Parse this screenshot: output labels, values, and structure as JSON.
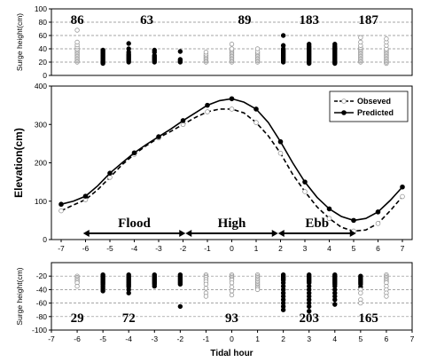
{
  "chart_data": [
    {
      "type": "scatter",
      "panel": "top",
      "ylabel": "Surge height(cm)",
      "ylim": [
        0,
        100
      ],
      "yticks": [
        0,
        20,
        40,
        60,
        80,
        100
      ],
      "xlim": [
        -7,
        7
      ],
      "grid": "horizontal dashed",
      "counts": [
        {
          "x": -6,
          "label": "86"
        },
        {
          "x": -3.3,
          "label": "63"
        },
        {
          "x": 0.5,
          "label": "89"
        },
        {
          "x": 3,
          "label": "183"
        },
        {
          "x": 5.3,
          "label": "187"
        }
      ],
      "points": [
        {
          "x": -6,
          "filled": false,
          "y": [
            20,
            22,
            24,
            26,
            28,
            30,
            32,
            34,
            36,
            38,
            40,
            43,
            46,
            50,
            68
          ]
        },
        {
          "x": -5,
          "filled": true,
          "y": [
            18,
            20,
            22,
            24,
            26,
            28,
            30,
            32,
            34,
            36,
            38
          ]
        },
        {
          "x": -4,
          "filled": true,
          "y": [
            20,
            22,
            24,
            26,
            28,
            30,
            32,
            35,
            40,
            48
          ]
        },
        {
          "x": -3,
          "filled": true,
          "y": [
            20,
            22,
            24,
            26,
            28,
            30,
            35,
            38
          ]
        },
        {
          "x": -2,
          "filled": true,
          "y": [
            20,
            22,
            24,
            36
          ]
        },
        {
          "x": -1,
          "filled": false,
          "y": [
            20,
            22,
            24,
            26,
            28,
            30,
            32,
            35
          ]
        },
        {
          "x": 0,
          "filled": false,
          "y": [
            20,
            22,
            24,
            26,
            28,
            30,
            32,
            34,
            36,
            38,
            40,
            47
          ]
        },
        {
          "x": 1,
          "filled": false,
          "y": [
            20,
            22,
            24,
            26,
            28,
            30,
            32,
            34,
            36,
            40
          ]
        },
        {
          "x": 2,
          "filled": true,
          "y": [
            20,
            22,
            24,
            26,
            28,
            30,
            32,
            34,
            36,
            38,
            40,
            45,
            60
          ]
        },
        {
          "x": 3,
          "filled": true,
          "y": [
            18,
            20,
            22,
            24,
            26,
            28,
            30,
            32,
            34,
            36,
            38,
            40,
            42,
            44,
            47
          ]
        },
        {
          "x": 4,
          "filled": true,
          "y": [
            18,
            20,
            22,
            24,
            26,
            28,
            30,
            32,
            34,
            36,
            38,
            40,
            42,
            44,
            47
          ]
        },
        {
          "x": 5,
          "filled": false,
          "y": [
            20,
            22,
            24,
            26,
            28,
            30,
            32,
            34,
            36,
            38,
            40,
            42,
            45,
            50,
            57
          ]
        },
        {
          "x": 6,
          "filled": false,
          "y": [
            18,
            20,
            22,
            24,
            26,
            28,
            30,
            32,
            34,
            36,
            38,
            40,
            45,
            50,
            55
          ]
        }
      ]
    },
    {
      "type": "line",
      "panel": "middle",
      "ylabel": "Elevation(cm)",
      "ylim": [
        0,
        400
      ],
      "yticks": [
        0,
        100,
        200,
        300,
        400
      ],
      "xlim": [
        -7.4,
        7.4
      ],
      "xticks": [
        -7,
        -6,
        -5,
        -4,
        -3,
        -2,
        -1,
        0,
        1,
        2,
        3,
        4,
        5,
        6,
        7
      ],
      "legend": "top-right",
      "series": [
        {
          "name": "Obseved",
          "style": "dashed",
          "marker": "open-circle",
          "x": [
            -7,
            -6.5,
            -6,
            -5.5,
            -5,
            -4.5,
            -4,
            -3.5,
            -3,
            -2.5,
            -2,
            -1.5,
            -1,
            -0.5,
            0,
            0.5,
            1,
            1.5,
            2,
            2.5,
            3,
            3.5,
            4,
            4.5,
            5,
            5.5,
            6,
            6.5,
            7
          ],
          "values": [
            75,
            90,
            104,
            130,
            162,
            195,
            222,
            245,
            265,
            282,
            300,
            318,
            333,
            340,
            340,
            330,
            305,
            270,
            225,
            170,
            125,
            85,
            55,
            32,
            22,
            25,
            42,
            75,
            112
          ]
        },
        {
          "name": "Predicted",
          "style": "solid",
          "marker": "filled-circle",
          "x": [
            -7,
            -6.5,
            -6,
            -5.5,
            -5,
            -4.5,
            -4,
            -3.5,
            -3,
            -2.5,
            -2,
            -1.5,
            -1,
            -0.5,
            0,
            0.5,
            1,
            1.5,
            2,
            2.5,
            3,
            3.5,
            4,
            4.5,
            5,
            5.5,
            6,
            6.5,
            7
          ],
          "values": [
            92,
            100,
            113,
            140,
            173,
            200,
            226,
            248,
            268,
            288,
            310,
            330,
            350,
            362,
            367,
            358,
            340,
            305,
            255,
            200,
            150,
            110,
            80,
            60,
            50,
            55,
            72,
            102,
            137
          ]
        }
      ],
      "annotations": [
        {
          "label": "Flood",
          "from": -6.1,
          "to": -1.9
        },
        {
          "label": "High",
          "from": -1.9,
          "to": 1.9
        },
        {
          "label": "Ebb",
          "from": 1.9,
          "to": 5.1
        }
      ]
    },
    {
      "type": "scatter",
      "panel": "bottom",
      "xlabel": "Tidal hour",
      "ylabel": "Surge height(cm)",
      "ylim": [
        -100,
        0
      ],
      "yticks": [
        -100,
        -80,
        -60,
        -40,
        -20
      ],
      "xlim": [
        -7,
        7
      ],
      "xticks": [
        -7,
        -6,
        -5,
        -4,
        -3,
        -2,
        -1,
        0,
        1,
        2,
        3,
        4,
        5,
        6,
        7
      ],
      "grid": "horizontal dashed",
      "counts": [
        {
          "x": -6,
          "label": "29"
        },
        {
          "x": -4,
          "label": "72"
        },
        {
          "x": 0,
          "label": "93"
        },
        {
          "x": 3,
          "label": "203"
        },
        {
          "x": 5.3,
          "label": "165"
        }
      ],
      "points": [
        {
          "x": -6,
          "filled": false,
          "y": [
            -20,
            -22,
            -24,
            -26,
            -28,
            -30,
            -35
          ]
        },
        {
          "x": -5,
          "filled": true,
          "y": [
            -18,
            -20,
            -22,
            -24,
            -26,
            -28,
            -30,
            -32,
            -35,
            -38,
            -42
          ]
        },
        {
          "x": -4,
          "filled": true,
          "y": [
            -18,
            -20,
            -22,
            -24,
            -26,
            -28,
            -30,
            -32,
            -34,
            -36,
            -40,
            -45
          ]
        },
        {
          "x": -3,
          "filled": true,
          "y": [
            -18,
            -20,
            -22,
            -24,
            -26,
            -28,
            -30,
            -32,
            -35
          ]
        },
        {
          "x": -2,
          "filled": true,
          "y": [
            -18,
            -20,
            -22,
            -24,
            -26,
            -28,
            -30,
            -32,
            -65
          ]
        },
        {
          "x": -1,
          "filled": false,
          "y": [
            -18,
            -20,
            -22,
            -25,
            -28,
            -32,
            -38,
            -45,
            -50
          ]
        },
        {
          "x": 0,
          "filled": false,
          "y": [
            -18,
            -20,
            -22,
            -24,
            -26,
            -30,
            -36,
            -42,
            -48
          ]
        },
        {
          "x": 1,
          "filled": false,
          "y": [
            -18,
            -20,
            -22,
            -24,
            -26,
            -28,
            -30,
            -32,
            -34,
            -36,
            -38,
            -40
          ]
        },
        {
          "x": 2,
          "filled": true,
          "y": [
            -18,
            -20,
            -22,
            -24,
            -26,
            -30,
            -35,
            -40,
            -45,
            -50,
            -55,
            -60,
            -65,
            -70
          ]
        },
        {
          "x": 3,
          "filled": true,
          "y": [
            -18,
            -20,
            -22,
            -24,
            -26,
            -28,
            -30,
            -35,
            -40,
            -45,
            -50,
            -55,
            -60,
            -65,
            -72
          ]
        },
        {
          "x": 4,
          "filled": true,
          "y": [
            -18,
            -20,
            -22,
            -24,
            -26,
            -28,
            -30,
            -32,
            -35,
            -40,
            -45,
            -50,
            -55,
            -62
          ]
        },
        {
          "x": 5,
          "filled": true,
          "y": [
            -20,
            -22,
            -24,
            -26,
            -28,
            -30,
            -32,
            -36
          ]
        },
        {
          "x": 5,
          "filled": false,
          "y": [
            -40,
            -45,
            -55,
            -60
          ]
        },
        {
          "x": 6,
          "filled": false,
          "y": [
            -18,
            -20,
            -22,
            -24,
            -26,
            -28,
            -30,
            -35,
            -40,
            -45,
            -50
          ]
        }
      ]
    }
  ]
}
